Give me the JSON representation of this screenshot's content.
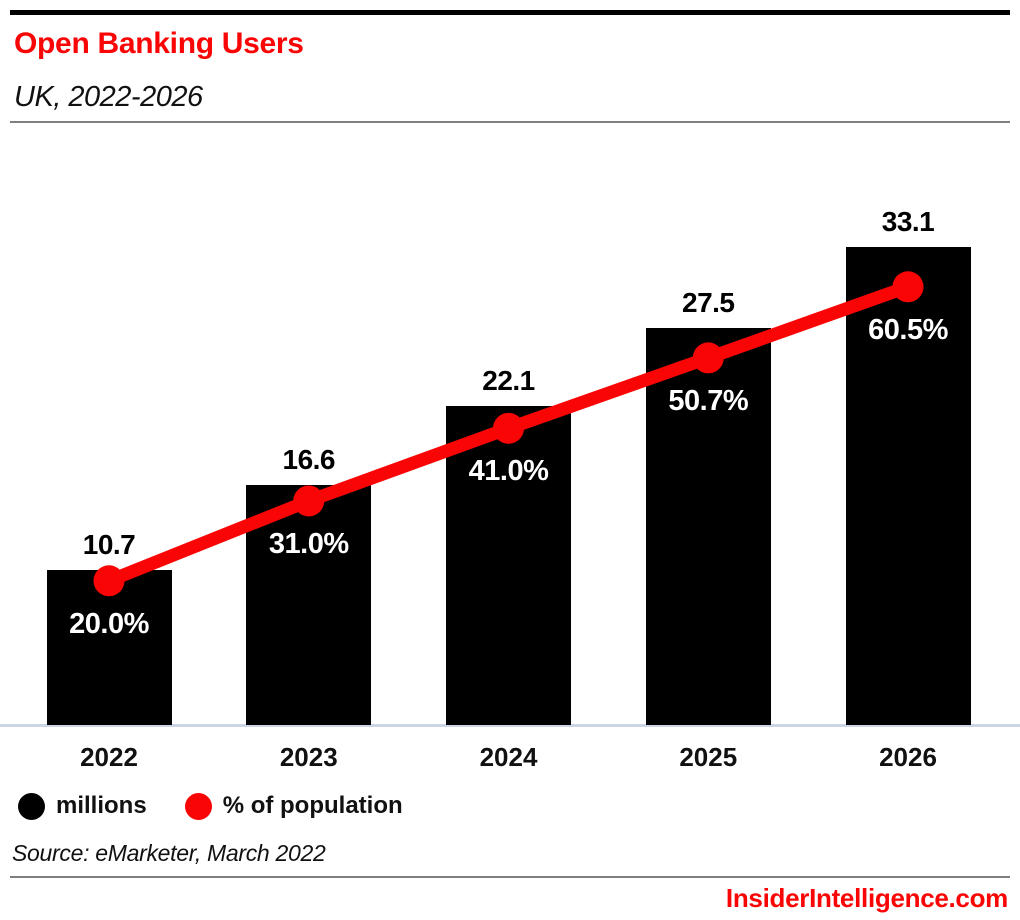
{
  "header": {
    "title": "Open Banking Users",
    "subtitle": "UK, 2022-2026"
  },
  "chart_data": {
    "type": "bar",
    "subtype": "combo-bar-line",
    "title": "Open Banking Users",
    "subtitle": "UK, 2022-2026",
    "categories": [
      "2022",
      "2023",
      "2024",
      "2025",
      "2026"
    ],
    "series": [
      {
        "name": "millions",
        "type": "bar",
        "color": "#000000",
        "values": [
          10.7,
          16.6,
          22.1,
          27.5,
          33.1
        ],
        "data_labels": [
          "10.7",
          "16.6",
          "22.1",
          "27.5",
          "33.1"
        ],
        "label_color": "#000000"
      },
      {
        "name": "% of population",
        "type": "line",
        "color": "#fa0505",
        "values": [
          20.0,
          31.0,
          41.0,
          50.7,
          60.5
        ],
        "data_labels": [
          "20.0%",
          "31.0%",
          "41.0%",
          "50.7%",
          "60.5%"
        ],
        "label_color": "#ffffff"
      }
    ],
    "xlabel": "",
    "ylabel": "",
    "bar_axis_range": [
      0,
      34.5
    ],
    "pct_axis_range": [
      0,
      100
    ],
    "grid": false,
    "axes_ticks_visible": false,
    "legend_position": "bottom-left"
  },
  "legend": {
    "items": [
      {
        "label": "millions",
        "color": "#000000",
        "marker": "circle"
      },
      {
        "label": "% of population",
        "color": "#fa0505",
        "marker": "circle"
      }
    ]
  },
  "footer": {
    "source": "Source: eMarketer, March 2022",
    "brand": "InsiderIntelligence.com"
  },
  "colors": {
    "accent_red": "#fa0505",
    "bar_black": "#000000",
    "axis_line": "#ccd5e6",
    "divider_gray": "#7f7f7f",
    "pct_label_white": "#ffffff",
    "text_black": "#111111",
    "background": "#ffffff"
  }
}
